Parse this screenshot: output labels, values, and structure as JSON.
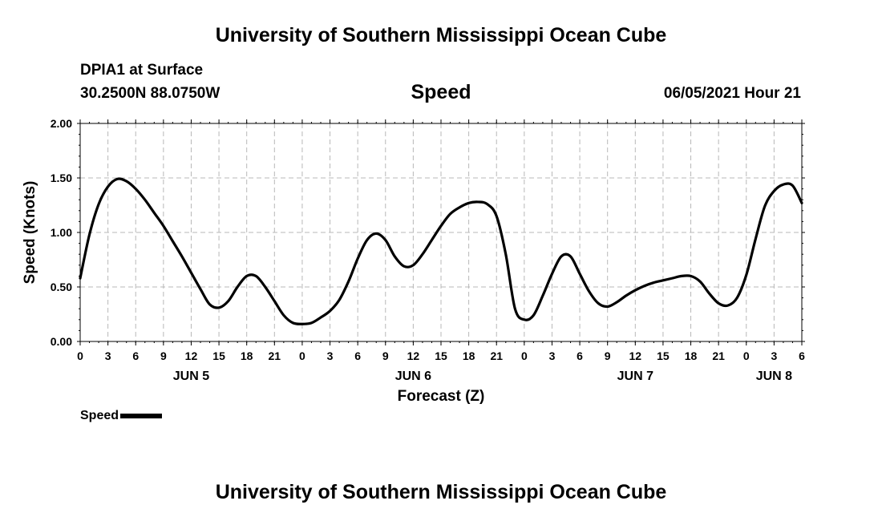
{
  "header": {
    "title": "University of Southern Mississippi Ocean Cube",
    "station": "DPIA1 at Surface",
    "coordinates": "30.2500N  88.0750W",
    "chart_title": "Speed",
    "datetime": "06/05/2021 Hour 21"
  },
  "footer": {
    "title": "University of Southern Mississippi Ocean Cube"
  },
  "legend": {
    "label": "Speed"
  },
  "chart_data": {
    "type": "line",
    "title": "Speed",
    "xlabel": "Forecast (Z)",
    "ylabel": "Speed (Knots)",
    "ylim": [
      0,
      2
    ],
    "yticks": [
      "0.00",
      "0.50",
      "1.00",
      "1.50",
      "2.00"
    ],
    "xlim": [
      0,
      78
    ],
    "xticks": [
      "0",
      "3",
      "6",
      "9",
      "12",
      "15",
      "18",
      "21",
      "0",
      "3",
      "6",
      "9",
      "12",
      "15",
      "18",
      "21",
      "0",
      "3",
      "6",
      "9",
      "12",
      "15",
      "18",
      "21",
      "0",
      "3",
      "6"
    ],
    "day_labels": [
      {
        "label": "JUN 5",
        "at": 12
      },
      {
        "label": "JUN 6",
        "at": 36
      },
      {
        "label": "JUN 7",
        "at": 60
      },
      {
        "label": "JUN 8",
        "at": 75
      }
    ],
    "grid": true,
    "legend_position": "bottom-left",
    "line_color": "#000000",
    "series": [
      {
        "name": "Speed",
        "x": [
          0,
          1,
          2,
          3,
          4,
          5,
          6,
          7,
          8,
          9,
          10,
          11,
          12,
          13,
          14,
          15,
          16,
          17,
          18,
          19,
          20,
          21,
          22,
          23,
          24,
          25,
          26,
          27,
          28,
          29,
          30,
          31,
          32,
          33,
          34,
          35,
          36,
          37,
          38,
          39,
          40,
          41,
          42,
          43,
          44,
          45,
          46,
          47,
          48,
          49,
          50,
          51,
          52,
          53,
          54,
          55,
          56,
          57,
          58,
          59,
          60,
          61,
          62,
          63,
          64,
          65,
          66,
          67,
          68,
          69,
          70,
          71,
          72,
          73,
          74,
          75,
          76,
          77,
          78
        ],
        "values": [
          0.58,
          0.98,
          1.26,
          1.42,
          1.49,
          1.47,
          1.4,
          1.3,
          1.18,
          1.06,
          0.92,
          0.78,
          0.63,
          0.48,
          0.34,
          0.31,
          0.37,
          0.5,
          0.6,
          0.6,
          0.5,
          0.37,
          0.24,
          0.17,
          0.16,
          0.17,
          0.22,
          0.28,
          0.38,
          0.55,
          0.76,
          0.93,
          0.99,
          0.93,
          0.78,
          0.69,
          0.7,
          0.8,
          0.93,
          1.06,
          1.17,
          1.23,
          1.27,
          1.28,
          1.26,
          1.15,
          0.8,
          0.3,
          0.2,
          0.24,
          0.42,
          0.62,
          0.78,
          0.78,
          0.62,
          0.46,
          0.35,
          0.32,
          0.36,
          0.42,
          0.47,
          0.51,
          0.54,
          0.56,
          0.58,
          0.6,
          0.6,
          0.55,
          0.44,
          0.35,
          0.33,
          0.4,
          0.61,
          0.94,
          1.24,
          1.38,
          1.44,
          1.43,
          1.27
        ]
      }
    ]
  }
}
